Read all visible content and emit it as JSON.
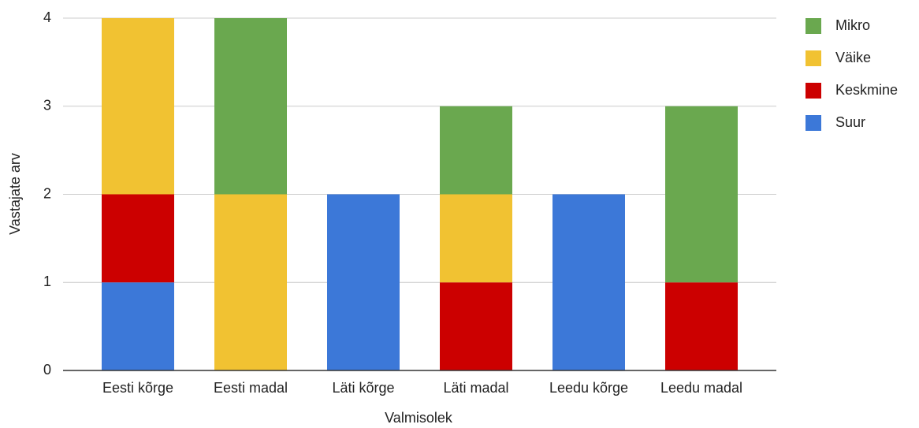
{
  "chart_data": {
    "type": "bar",
    "stacked": true,
    "x_label": "Valmisolek",
    "y_label": "Vastajate arv",
    "categories": [
      "Eesti kõrge",
      "Eesti madal",
      "Läti kõrge",
      "Läti madal",
      "Leedu kõrge",
      "Leedu madal"
    ],
    "series": [
      {
        "name": "Mikro",
        "color": "#6aa84f",
        "values": [
          0,
          2,
          0,
          1,
          0,
          2
        ]
      },
      {
        "name": "Väike",
        "color": "#f1c232",
        "values": [
          2,
          2,
          0,
          1,
          0,
          0
        ]
      },
      {
        "name": "Keskmine",
        "color": "#cc0000",
        "values": [
          1,
          0,
          0,
          1,
          0,
          1
        ]
      },
      {
        "name": "Suur",
        "color": "#3c78d8",
        "values": [
          1,
          0,
          2,
          0,
          2,
          0
        ]
      }
    ],
    "ylim": [
      0,
      4
    ],
    "yticks": [
      0,
      1,
      2,
      3,
      4
    ],
    "grid": true,
    "legend": "right"
  }
}
